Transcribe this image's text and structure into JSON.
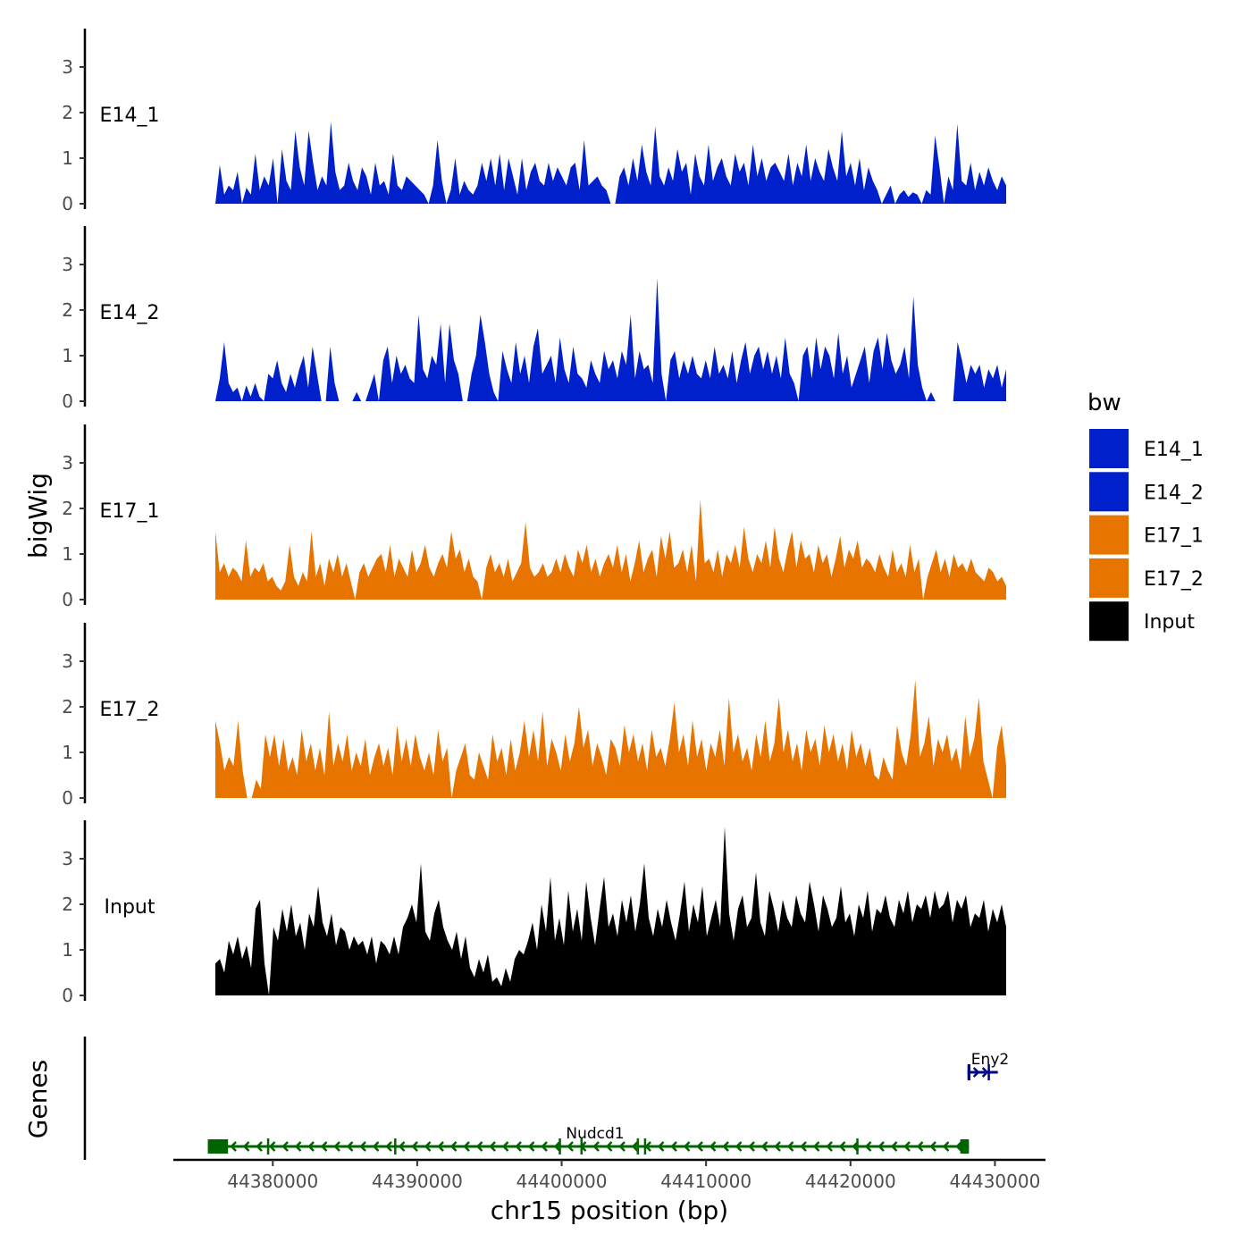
{
  "chart_data": {
    "type": "area",
    "xlabel": "chr15 position (bp)",
    "ylabel": "bigWig",
    "genes_label": "Genes",
    "x_range": [
      44375500,
      44430200
    ],
    "x_ticks": [
      44380000,
      44390000,
      44400000,
      44410000,
      44420000,
      44430000
    ],
    "x_tick_labels": [
      "44380000",
      "44390000",
      "44400000",
      "44410000",
      "44420000",
      "44430000"
    ],
    "y_range": [
      0,
      3.8
    ],
    "y_ticks": [
      0,
      1,
      2,
      3
    ],
    "y_tick_labels": [
      "0",
      "1",
      "2",
      "3"
    ],
    "legend": {
      "title": "bw",
      "items": [
        {
          "label": "E14_1",
          "color": "#0020CC"
        },
        {
          "label": "E14_2",
          "color": "#0020CC"
        },
        {
          "label": "E17_1",
          "color": "#E87400"
        },
        {
          "label": "E17_2",
          "color": "#E87400"
        },
        {
          "label": "Input",
          "color": "#000000"
        }
      ]
    },
    "series": [
      {
        "name": "E14_1",
        "color": "#0020CC",
        "values": [
          0,
          0.85,
          0.2,
          0.4,
          0.3,
          0.7,
          0,
          0.35,
          0.2,
          1.1,
          0.3,
          0.6,
          0.4,
          1.0,
          0,
          1.2,
          0.5,
          0.3,
          1.6,
          0.8,
          0.4,
          1.6,
          0.9,
          0.3,
          0.6,
          0.4,
          1.8,
          0.7,
          0.3,
          0.4,
          0.9,
          0.5,
          0.3,
          0.8,
          0.6,
          0.2,
          0.9,
          0.4,
          0.5,
          0.2,
          1.1,
          0.4,
          0.3,
          0.6,
          0.5,
          0.4,
          0.3,
          0.2,
          0,
          0.4,
          1.4,
          0.5,
          0,
          0.3,
          1.0,
          0.2,
          0.5,
          0.3,
          0.2,
          0.4,
          0.9,
          0.5,
          1.0,
          0.4,
          1.1,
          0.3,
          1.0,
          0.6,
          0.2,
          1.0,
          0.3,
          0.7,
          0.9,
          0.5,
          0.4,
          0.9,
          0.5,
          0.8,
          0.6,
          0.4,
          0.8,
          0.9,
          0.3,
          1.4,
          0.4,
          0.5,
          0.6,
          0.4,
          0.3,
          0,
          0,
          0.6,
          0.8,
          0.4,
          1.0,
          0.5,
          1.3,
          0.7,
          0.4,
          1.7,
          0.6,
          0.4,
          0.8,
          0.5,
          1.2,
          0.7,
          0.9,
          0.2,
          1.1,
          0.6,
          0.4,
          1.3,
          0.5,
          0.8,
          1.0,
          0.6,
          0.4,
          1.1,
          0.7,
          0.9,
          0.4,
          1.3,
          0.6,
          1.0,
          0.5,
          0.8,
          0.9,
          0.7,
          0.5,
          1.1,
          0.4,
          0.9,
          0.6,
          1.3,
          0.5,
          1.0,
          0.7,
          0.5,
          1.2,
          0.8,
          0.5,
          1.6,
          0.6,
          0.9,
          0.4,
          1.0,
          0.3,
          0.8,
          0.5,
          0.3,
          0,
          0.2,
          0.4,
          0,
          0.2,
          0.3,
          0.15,
          0.25,
          0.2,
          0,
          0.3,
          0.2,
          1.5,
          0.8,
          0,
          0.6,
          0.3,
          1.75,
          0.5,
          0.4,
          0.9,
          0.3,
          0.7,
          0.4,
          0.8,
          0.5,
          0.3,
          0.6,
          0.4
        ]
      },
      {
        "name": "E14_2",
        "color": "#0020CC",
        "values": [
          0,
          0.5,
          1.3,
          0.4,
          0.2,
          0.3,
          0,
          0.35,
          0.1,
          0.4,
          0.1,
          0,
          0.6,
          0.5,
          0.9,
          0.4,
          0.2,
          0.6,
          0.3,
          0.7,
          1.0,
          0.3,
          1.2,
          0.6,
          0,
          0,
          1.2,
          0.4,
          0,
          0,
          0,
          0,
          0.2,
          0,
          0,
          0.3,
          0.6,
          0,
          0.9,
          1.2,
          0.4,
          1.0,
          0.6,
          0.8,
          0.5,
          0.4,
          1.9,
          0.7,
          0.5,
          1.0,
          0.8,
          1.7,
          0.4,
          1.7,
          0.9,
          0.6,
          0,
          0,
          0.6,
          1.0,
          1.9,
          1.3,
          0.6,
          0.2,
          0,
          1.1,
          0.7,
          0.4,
          1.3,
          0.6,
          1.0,
          0.4,
          1.2,
          1.6,
          0.6,
          0.8,
          1.0,
          0.4,
          1.4,
          0.7,
          0.4,
          1.2,
          0.6,
          0.5,
          0.3,
          0.9,
          0.6,
          0.4,
          1.1,
          0.7,
          0.9,
          0.5,
          1.1,
          0.8,
          1.9,
          0.5,
          1.1,
          0.7,
          0.8,
          0.4,
          2.7,
          0.6,
          0,
          0.9,
          1.1,
          0.5,
          0.9,
          0.6,
          1.0,
          0.6,
          0.5,
          0.9,
          0.5,
          1.2,
          0.6,
          0.8,
          0.5,
          1.1,
          0.4,
          0.9,
          1.3,
          0.6,
          1.0,
          1.2,
          0.7,
          1.1,
          0.6,
          1.0,
          0.5,
          1.4,
          0.6,
          0.4,
          0,
          1.0,
          1.2,
          0.5,
          1.4,
          0.7,
          1.2,
          1.0,
          0.5,
          1.5,
          0.6,
          1.0,
          0.3,
          0.6,
          0.9,
          1.2,
          0.4,
          1.1,
          1.4,
          0.7,
          1.5,
          0.9,
          0.6,
          0.8,
          1.2,
          0.5,
          2.3,
          0.8,
          0.3,
          0,
          0.2,
          0,
          0,
          0,
          0,
          0,
          1.3,
          0.9,
          0.4,
          0.8,
          0.6,
          0.8,
          0.3,
          0.7,
          0.5,
          0.8,
          0.3,
          0.7
        ]
      },
      {
        "name": "E17_1",
        "color": "#E87400",
        "values": [
          1.5,
          0.6,
          0.8,
          0.5,
          0.7,
          0.6,
          0.4,
          1.3,
          0.5,
          0.7,
          0.6,
          0.8,
          0.4,
          0.5,
          0.3,
          0.2,
          0.4,
          1.2,
          0.5,
          0.3,
          0.6,
          0.4,
          1.5,
          0.5,
          0.8,
          0.3,
          0.9,
          0.6,
          1.0,
          0.5,
          0.8,
          0.4,
          0,
          0.6,
          0.8,
          0.5,
          0.7,
          0.9,
          1.0,
          0.6,
          1.2,
          0.5,
          0.9,
          0.7,
          0.5,
          1.1,
          0.6,
          0.8,
          1.2,
          0.7,
          0.5,
          0.8,
          1.0,
          0.7,
          1.5,
          0.9,
          1.1,
          0.6,
          0.9,
          0.5,
          0.4,
          0,
          0.7,
          1.0,
          0.6,
          0.8,
          0.5,
          0.9,
          0.4,
          0.6,
          0.8,
          1.7,
          0.7,
          0.5,
          0.6,
          0.8,
          0.5,
          0.6,
          0.9,
          0.6,
          1.0,
          0.7,
          0.5,
          1.1,
          0.8,
          1.2,
          0.6,
          0.9,
          0.5,
          0.8,
          1.0,
          0.7,
          1.2,
          0.6,
          1.0,
          0.4,
          0.8,
          1.3,
          0.6,
          0.9,
          1.1,
          0.5,
          1.4,
          0.9,
          1.5,
          0.7,
          0.8,
          1.1,
          0.6,
          1.2,
          0.4,
          2.2,
          0.8,
          0.9,
          0.6,
          1.1,
          0.5,
          1.0,
          0.8,
          1.2,
          0.7,
          1.6,
          0.9,
          0.6,
          1.0,
          0.8,
          1.3,
          0.7,
          1.6,
          0.9,
          0.6,
          1.1,
          1.5,
          0.7,
          1.3,
          0.9,
          1.0,
          0.6,
          1.2,
          0.8,
          1.0,
          0.5,
          0.9,
          1.4,
          0.7,
          1.1,
          0.9,
          1.3,
          0.7,
          0.9,
          0.8,
          0.6,
          1.0,
          0.7,
          0.5,
          1.1,
          0.6,
          0.8,
          0.5,
          1.2,
          0.6,
          0.9,
          0,
          0.5,
          0.8,
          1.1,
          0.6,
          0.9,
          0.5,
          1.0,
          0.7,
          0.8,
          0.6,
          0.9,
          0.6,
          0.5,
          0.4,
          0.7,
          0.6,
          0.4,
          0.5,
          0.3
        ]
      },
      {
        "name": "E17_2",
        "color": "#E87400",
        "values": [
          1.7,
          1.2,
          0.6,
          0.9,
          0.7,
          1.7,
          0.6,
          0,
          0,
          0.4,
          0.2,
          1.4,
          0.9,
          1.4,
          0.7,
          1.3,
          0.6,
          0.9,
          0.5,
          1.5,
          0.8,
          1.2,
          0.6,
          1.1,
          0.5,
          1.9,
          0.7,
          1.2,
          0.8,
          1.4,
          0.6,
          1.0,
          0.7,
          1.3,
          0.5,
          0.9,
          1.2,
          0.7,
          1.1,
          0.5,
          1.6,
          0.8,
          1.3,
          0.7,
          1.4,
          0.9,
          0.6,
          1.0,
          0.5,
          1.5,
          0.8,
          1.1,
          0,
          0.6,
          0.9,
          1.2,
          0.5,
          0.4,
          1.0,
          0.7,
          0.4,
          1.4,
          0.8,
          1.1,
          0.5,
          1.3,
          0.6,
          1.0,
          1.7,
          0.9,
          1.5,
          0.8,
          1.9,
          0.7,
          1.3,
          1.0,
          0.6,
          1.4,
          0.8,
          1.2,
          2.0,
          1.1,
          1.5,
          0.7,
          1.2,
          0.9,
          0.5,
          1.3,
          1.1,
          0.7,
          1.6,
          1.0,
          1.4,
          0.8,
          1.2,
          0.6,
          1.5,
          0.9,
          1.1,
          0.7,
          1.3,
          2.1,
          1.0,
          1.4,
          0.7,
          1.7,
          0.9,
          1.3,
          0.6,
          1.2,
          0.9,
          1.5,
          0.7,
          2.2,
          1.0,
          1.4,
          0.8,
          1.1,
          0.6,
          1.4,
          0.9,
          1.7,
          0.8,
          1.2,
          2.2,
          1.0,
          1.5,
          0.8,
          1.2,
          0.6,
          1.5,
          1.0,
          1.3,
          0.7,
          1.6,
          1.0,
          1.4,
          0.8,
          1.2,
          0.6,
          1.5,
          0.9,
          1.2,
          0.7,
          1.1,
          0.5,
          0.4,
          0.9,
          0.6,
          0.4,
          1.6,
          1.0,
          0.7,
          1.4,
          2.6,
          0.9,
          1.2,
          1.8,
          0.7,
          1.3,
          1.0,
          1.4,
          0.8,
          1.1,
          0.6,
          1.8,
          0.9,
          1.3,
          2.2,
          0.8,
          0.4,
          0,
          1.1,
          1.6,
          0.7
        ]
      },
      {
        "name": "Input",
        "color": "#000000",
        "values": [
          0.7,
          0.8,
          0.5,
          1.2,
          0.9,
          1.3,
          0.8,
          1.1,
          0.6,
          1.9,
          2.1,
          0.7,
          0,
          1.5,
          1.2,
          1.9,
          1.4,
          2.0,
          1.3,
          1.6,
          1.0,
          1.8,
          1.5,
          2.4,
          1.6,
          1.3,
          1.8,
          1.1,
          1.5,
          1.4,
          1.0,
          1.3,
          1.1,
          1.2,
          0.9,
          1.3,
          0.7,
          1.2,
          1.1,
          0.9,
          1.3,
          0.9,
          1.5,
          1.7,
          2.0,
          1.6,
          2.9,
          1.4,
          1.2,
          1.8,
          2.1,
          1.5,
          1.2,
          1.0,
          1.4,
          0.8,
          1.3,
          0.6,
          0.4,
          0.8,
          0.5,
          0.9,
          0.3,
          0.4,
          0.2,
          0.6,
          0.3,
          0.8,
          1.0,
          0.9,
          1.2,
          1.6,
          1.0,
          2.0,
          1.4,
          2.6,
          1.2,
          1.7,
          1.1,
          2.3,
          1.4,
          1.9,
          1.2,
          2.5,
          1.7,
          1.1,
          1.9,
          2.6,
          1.5,
          1.8,
          1.3,
          2.1,
          1.6,
          2.2,
          1.4,
          2.0,
          2.9,
          1.7,
          1.3,
          1.9,
          1.5,
          2.1,
          1.6,
          1.2,
          1.8,
          2.5,
          1.4,
          2.0,
          1.6,
          2.4,
          1.3,
          1.7,
          2.1,
          1.5,
          3.7,
          1.8,
          1.2,
          1.9,
          2.2,
          1.5,
          1.7,
          2.7,
          1.6,
          1.3,
          2.3,
          1.9,
          1.4,
          2.1,
          1.7,
          1.5,
          2.2,
          1.8,
          1.6,
          2.5,
          2.0,
          1.4,
          2.2,
          1.9,
          1.5,
          1.7,
          2.4,
          1.6,
          1.8,
          1.3,
          2.0,
          1.7,
          2.3,
          1.4,
          1.9,
          1.8,
          2.2,
          1.7,
          1.5,
          2.1,
          1.8,
          2.3,
          1.6,
          2.0,
          1.9,
          2.2,
          1.7,
          2.3,
          1.9,
          2.0,
          2.3,
          1.6,
          2.1,
          1.9,
          2.2,
          1.5,
          1.8,
          1.7,
          2.1,
          1.4,
          1.9,
          1.6,
          2.0,
          1.5
        ]
      }
    ],
    "genes": [
      {
        "name": "Nudcd1",
        "start": 44375500,
        "end": 44428200,
        "strand": "-",
        "color": "#006400",
        "row": 1,
        "exons": [
          [
            44375500,
            44376900
          ],
          [
            44379600,
            44379750
          ],
          [
            44388400,
            44388550
          ],
          [
            44399800,
            44399950
          ],
          [
            44401300,
            44401450
          ],
          [
            44405200,
            44405350
          ],
          [
            44405700,
            44405850
          ],
          [
            44420400,
            44420550
          ],
          [
            44427600,
            44428200
          ]
        ]
      },
      {
        "name": "Eny2",
        "start": 44428100,
        "end": 44430200,
        "strand": "+",
        "color": "#00008B",
        "row": 0,
        "exons": [
          [
            44428100,
            44428300
          ],
          [
            44429500,
            44429600
          ]
        ]
      }
    ]
  }
}
